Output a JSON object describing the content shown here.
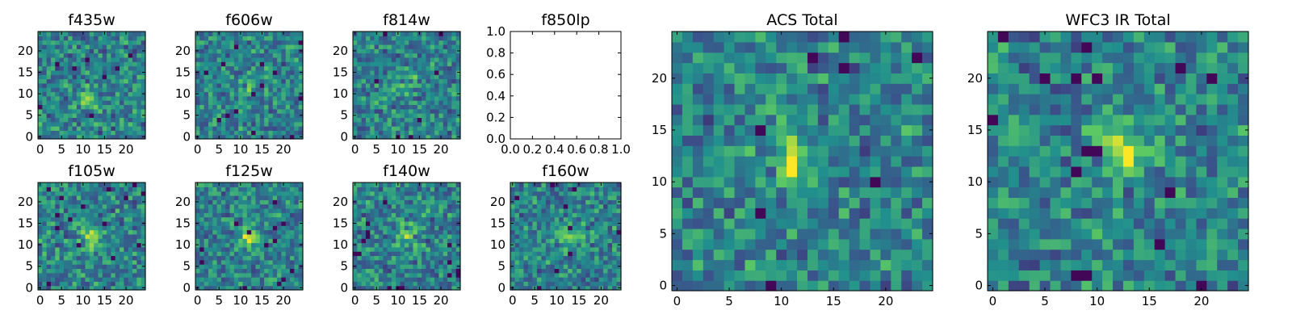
{
  "colors": {
    "background": "#ffffff",
    "axes": "#000000",
    "colormap": [
      "#440154",
      "#3b528b",
      "#21908d",
      "#5dc963",
      "#fde725"
    ]
  },
  "chart_data": [
    {
      "id": "f435w",
      "type": "heatmap",
      "title": "f435w",
      "grid": [
        25,
        25
      ],
      "colormap": "viridis",
      "xticks": [
        "0",
        "5",
        "10",
        "15",
        "20"
      ],
      "yticks": [
        "0",
        "5",
        "10",
        "15",
        "20"
      ],
      "xlim": [
        -0.5,
        24.5
      ],
      "ylim": [
        -0.5,
        24.5
      ],
      "bright_spot": [
        11,
        9
      ],
      "bright_strength": 0.25,
      "seed": 11
    },
    {
      "id": "f606w",
      "type": "heatmap",
      "title": "f606w",
      "grid": [
        25,
        25
      ],
      "colormap": "viridis",
      "xticks": [
        "0",
        "5",
        "10",
        "15",
        "20"
      ],
      "yticks": [
        "0",
        "5",
        "10",
        "15",
        "20"
      ],
      "xlim": [
        -0.5,
        24.5
      ],
      "ylim": [
        -0.5,
        24.5
      ],
      "bright_spot": [
        12,
        12
      ],
      "bright_strength": 0.2,
      "seed": 23
    },
    {
      "id": "f814w",
      "type": "heatmap",
      "title": "f814w",
      "grid": [
        25,
        25
      ],
      "colormap": "viridis",
      "xticks": [
        "0",
        "5",
        "10",
        "15",
        "20"
      ],
      "yticks": [
        "0",
        "5",
        "10",
        "15",
        "20"
      ],
      "xlim": [
        -0.5,
        24.5
      ],
      "ylim": [
        -0.5,
        24.5
      ],
      "bright_spot": [
        12,
        13
      ],
      "bright_strength": 0.25,
      "seed": 37
    },
    {
      "id": "f850lp",
      "type": "empty",
      "title": "f850lp",
      "xticks": [
        "0.0",
        "0.2",
        "0.4",
        "0.6",
        "0.8",
        "1.0"
      ],
      "yticks": [
        "0.0",
        "0.2",
        "0.4",
        "0.6",
        "0.8",
        "1.0"
      ],
      "xlim": [
        0,
        1
      ],
      "ylim": [
        0,
        1
      ]
    },
    {
      "id": "f105w",
      "type": "heatmap",
      "title": "f105w",
      "grid": [
        25,
        25
      ],
      "colormap": "viridis",
      "xticks": [
        "0",
        "5",
        "10",
        "15",
        "20"
      ],
      "yticks": [
        "0",
        "5",
        "10",
        "15",
        "20"
      ],
      "xlim": [
        -0.5,
        24.5
      ],
      "ylim": [
        -0.5,
        24.5
      ],
      "bright_spot": [
        12,
        12
      ],
      "bright_strength": 0.35,
      "seed": 41
    },
    {
      "id": "f125w",
      "type": "heatmap",
      "title": "f125w",
      "grid": [
        25,
        25
      ],
      "colormap": "viridis",
      "xticks": [
        "0",
        "5",
        "10",
        "15",
        "20"
      ],
      "yticks": [
        "0",
        "5",
        "10",
        "15",
        "20"
      ],
      "xlim": [
        -0.5,
        24.5
      ],
      "ylim": [
        -0.5,
        24.5
      ],
      "bright_spot": [
        12,
        12
      ],
      "bright_strength": 0.35,
      "seed": 53
    },
    {
      "id": "f140w",
      "type": "heatmap",
      "title": "f140w",
      "grid": [
        25,
        25
      ],
      "colormap": "viridis",
      "xticks": [
        "0",
        "5",
        "10",
        "15",
        "20"
      ],
      "yticks": [
        "0",
        "5",
        "10",
        "15",
        "20"
      ],
      "xlim": [
        -0.5,
        24.5
      ],
      "ylim": [
        -0.5,
        24.5
      ],
      "bright_spot": [
        12,
        12
      ],
      "bright_strength": 0.3,
      "seed": 67
    },
    {
      "id": "f160w",
      "type": "heatmap",
      "title": "f160w",
      "grid": [
        25,
        25
      ],
      "colormap": "viridis",
      "xticks": [
        "0",
        "5",
        "10",
        "15",
        "20"
      ],
      "yticks": [
        "0",
        "5",
        "10",
        "15",
        "20"
      ],
      "xlim": [
        -0.5,
        24.5
      ],
      "ylim": [
        -0.5,
        24.5
      ],
      "bright_spot": [
        13,
        12
      ],
      "bright_strength": 0.4,
      "seed": 79
    },
    {
      "id": "acs-total",
      "type": "heatmap",
      "title": "ACS Total",
      "grid": [
        25,
        25
      ],
      "colormap": "viridis",
      "xticks": [
        "0",
        "5",
        "10",
        "15",
        "20"
      ],
      "yticks": [
        "0",
        "5",
        "10",
        "15",
        "20"
      ],
      "xlim": [
        -0.5,
        24.5
      ],
      "ylim": [
        -0.5,
        24.5
      ],
      "bright_spot": [
        11,
        12
      ],
      "bright_strength": 0.35,
      "seed": 97
    },
    {
      "id": "wfc3-ir-total",
      "type": "heatmap",
      "title": "WFC3 IR Total",
      "grid": [
        25,
        25
      ],
      "colormap": "viridis",
      "xticks": [
        "0",
        "5",
        "10",
        "15",
        "20"
      ],
      "yticks": [
        "0",
        "5",
        "10",
        "15",
        "20"
      ],
      "xlim": [
        -0.5,
        24.5
      ],
      "ylim": [
        -0.5,
        24.5
      ],
      "bright_spot": [
        12,
        13
      ],
      "bright_strength": 0.5,
      "seed": 113
    }
  ]
}
